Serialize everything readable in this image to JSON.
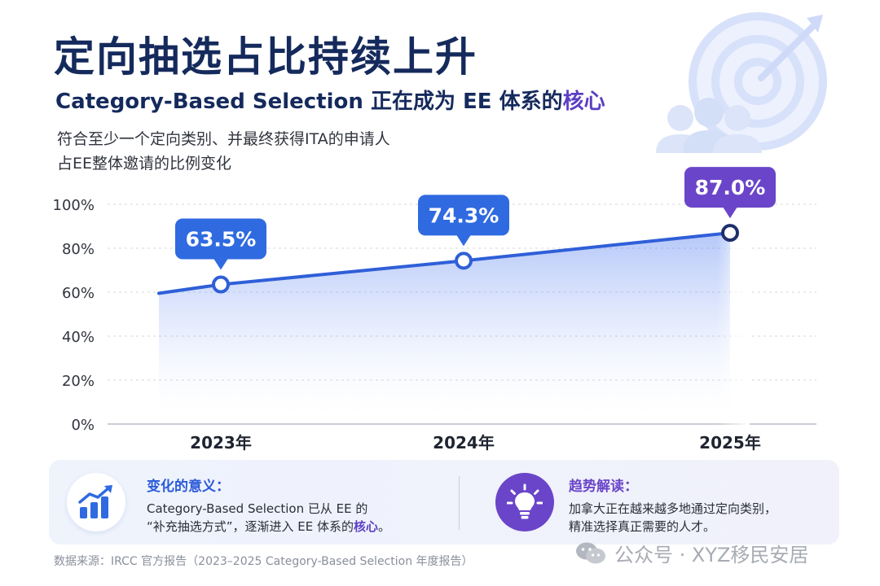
{
  "title": "定向抽选占比持续上升",
  "subtitle": {
    "lead": "Category-Based Selection 正在成为 EE 体系的",
    "accent": "核心"
  },
  "description": {
    "line1": "符合至少一个定向类别、并最终获得ITA的申请人",
    "line2": "占EE整体邀请的比例变化"
  },
  "chart_data": {
    "type": "area",
    "categories": [
      "2023年",
      "2024年",
      "2025年"
    ],
    "values": [
      63.5,
      74.3,
      87.0
    ],
    "data_labels": [
      "63.5%",
      "74.3%",
      "87.0%"
    ],
    "ylim": [
      0,
      100
    ],
    "yticks": [
      "0%",
      "20%",
      "40%",
      "60%",
      "80%",
      "100%"
    ],
    "grid": true,
    "start_value": 59.5,
    "colors": {
      "line": "#2f5fd8",
      "label_blue": "#2f6ae0",
      "label_purple": "#6a45c9",
      "fill": "#4f7cf0"
    }
  },
  "panel": {
    "left": {
      "icon": "growth-chart-icon",
      "heading": "变化的意义：",
      "line1": "Category-Based Selection 已从 EE 的",
      "line2_lead": "“补充抽选方式”，逐渐进入 EE 体系的",
      "line2_accent": "核心",
      "line2_tail": "。"
    },
    "right": {
      "icon": "lightbulb-icon",
      "heading": "趋势解读：",
      "line1": "加拿大正在越来越多地通过定向类别，",
      "line2": "精准选择真正需要的人才。"
    }
  },
  "source": "数据来源：IRCC 官方报告（2023–2025 Category-Based Selection 年度报告）",
  "watermark": "公众号 · XYZ移民安居",
  "icons": {
    "decor": "target-people-icon",
    "watermark": "wechat-icon"
  }
}
